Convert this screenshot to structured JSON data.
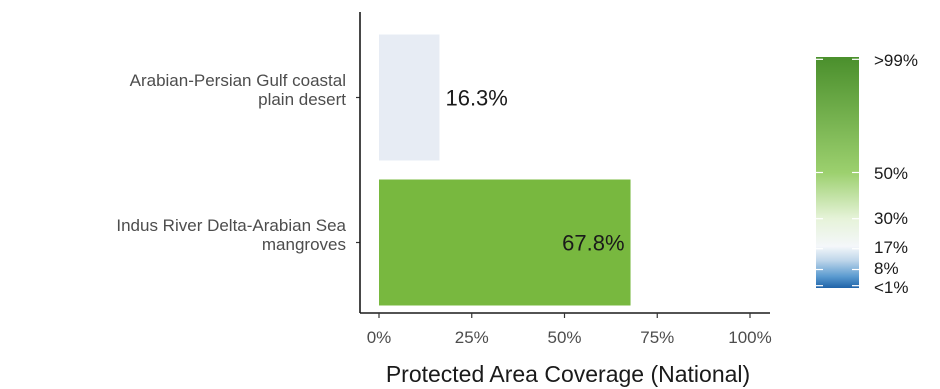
{
  "chart_data": {
    "type": "bar",
    "orientation": "horizontal",
    "categories": [
      "Arabian-Persian Gulf coastal\nplain desert",
      "Indus River Delta-Arabian Sea\nmangroves"
    ],
    "values": [
      16.3,
      67.8
    ],
    "data_labels": [
      "16.3%",
      "67.8%"
    ],
    "bar_colors": [
      "#e7ecf4",
      "#78b83f"
    ],
    "xlabel": "Protected Area Coverage (National)",
    "xlim": [
      0,
      100
    ],
    "xticks": [
      "0%",
      "25%",
      "50%",
      "75%",
      "100%"
    ],
    "grid": false,
    "legend": {
      "type": "colorbar",
      "placement": "right",
      "labels": [
        ">99%",
        "50%",
        "30%",
        "17%",
        "8%",
        "<1%"
      ],
      "label_values": [
        99,
        50,
        30,
        17,
        8,
        1
      ],
      "gradient": [
        {
          "value": 0,
          "color": "#1f63a8"
        },
        {
          "value": 5,
          "color": "#5b9bd0"
        },
        {
          "value": 12,
          "color": "#bfd6ea"
        },
        {
          "value": 18,
          "color": "#f4f7fa"
        },
        {
          "value": 30,
          "color": "#e6f3d9"
        },
        {
          "value": 50,
          "color": "#9cd06e"
        },
        {
          "value": 100,
          "color": "#4a8f2c"
        }
      ]
    }
  }
}
